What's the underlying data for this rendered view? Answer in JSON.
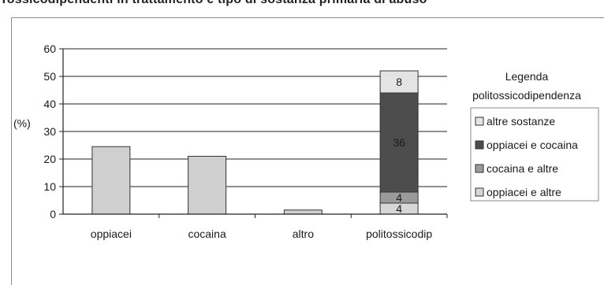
{
  "header": {
    "title_fragment": "Tossicodipendenti in trattamento e tipo di sostanza primaria di abuso"
  },
  "chart_data": {
    "type": "bar",
    "ylabel": "(%)",
    "ylim": [
      0,
      60
    ],
    "yticks": [
      0,
      10,
      20,
      30,
      40,
      50,
      60
    ],
    "grid": true,
    "categories": [
      "oppiacei",
      "cocaina",
      "altro",
      "politossicodip"
    ],
    "values": [
      24.5,
      21,
      1.5,
      53
    ],
    "bar_color": "#cfcfcf",
    "stack": {
      "category": "politossicodip",
      "segments": [
        {
          "name": "oppiacei e altre",
          "value": 4,
          "label": "4",
          "color": "#d6d6d6"
        },
        {
          "name": "cocaina e altre",
          "value": 4,
          "label": "4",
          "color": "#9a9a9a"
        },
        {
          "name": "oppiacei e cocaina",
          "value": 36,
          "label": "36",
          "color": "#4d4d4d"
        },
        {
          "name": "altre sostanze",
          "value": 8,
          "label": "8",
          "color": "#e4e4e4"
        }
      ]
    },
    "legend": {
      "title_line1": "Legenda",
      "title_line2": "politossicodipendenza",
      "position": "right",
      "entries": [
        {
          "label": "altre sostanze",
          "color": "#e4e4e4"
        },
        {
          "label": "oppiacei e cocaina",
          "color": "#4d4d4d"
        },
        {
          "label": "cocaina e altre",
          "color": "#9a9a9a"
        },
        {
          "label": "oppiacei e altre",
          "color": "#d6d6d6"
        }
      ]
    }
  }
}
